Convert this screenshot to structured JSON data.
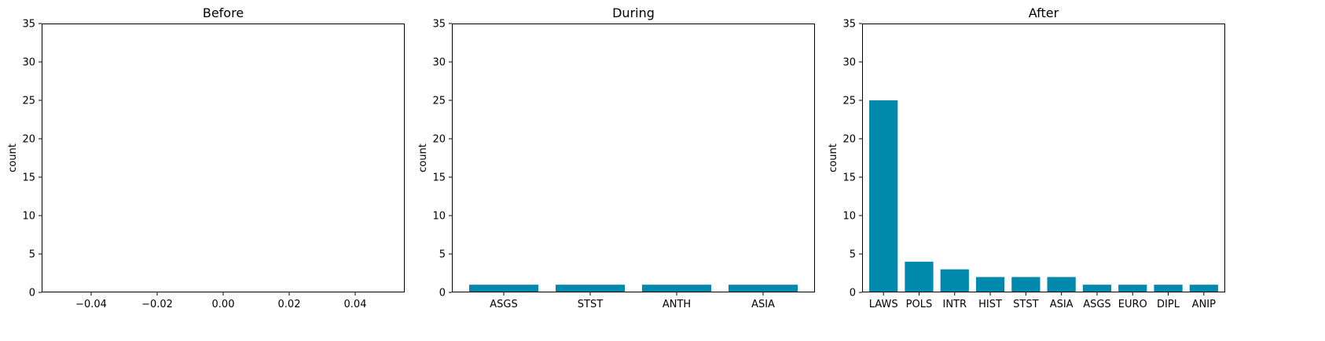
{
  "figure": {
    "background": "#ffffff",
    "bar_color": "#0088ad"
  },
  "chart_data": [
    {
      "type": "bar",
      "title": "Before",
      "ylabel": "count",
      "xlabel": "",
      "categories": [],
      "values": [],
      "ylim": [
        0,
        35
      ],
      "yticks": [
        0,
        5,
        10,
        15,
        20,
        25,
        30,
        35
      ],
      "xlim": [
        -0.055,
        0.055
      ],
      "xticks": [
        -0.04,
        -0.02,
        0.0,
        0.02,
        0.04
      ],
      "xtick_labels": [
        "−0.04",
        "−0.02",
        "0.00",
        "0.02",
        "0.04"
      ],
      "grid": false
    },
    {
      "type": "bar",
      "title": "During",
      "ylabel": "count",
      "xlabel": "",
      "categories": [
        "ASGS",
        "STST",
        "ANTH",
        "ASIA"
      ],
      "values": [
        1,
        1,
        1,
        1
      ],
      "ylim": [
        0,
        35
      ],
      "yticks": [
        0,
        5,
        10,
        15,
        20,
        25,
        30,
        35
      ],
      "grid": false
    },
    {
      "type": "bar",
      "title": "After",
      "ylabel": "count",
      "xlabel": "",
      "categories": [
        "LAWS",
        "POLS",
        "INTR",
        "HIST",
        "STST",
        "ASIA",
        "ASGS",
        "EURO",
        "DIPL",
        "ANIP"
      ],
      "values": [
        25,
        4,
        3,
        2,
        2,
        2,
        1,
        1,
        1,
        1
      ],
      "ylim": [
        0,
        35
      ],
      "yticks": [
        0,
        5,
        10,
        15,
        20,
        25,
        30,
        35
      ],
      "grid": false
    }
  ]
}
